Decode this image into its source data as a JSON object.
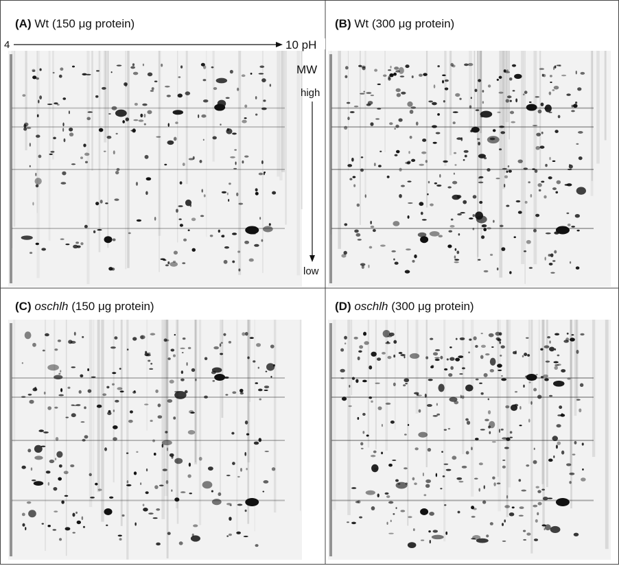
{
  "panels": [
    {
      "label": "(A)",
      "strain": "Wt",
      "amount": "(150 μg protein)"
    },
    {
      "label": "(B)",
      "strain": "Wt",
      "amount": "(300 μg protein)"
    },
    {
      "label": "(C)",
      "strain": "oschlh",
      "amount": "(150 μg protein)"
    },
    {
      "label": "(D)",
      "strain": "oschlh",
      "amount": "(300 μg protein)"
    }
  ],
  "axes": {
    "ph_low": "4",
    "ph_high": "10 pH",
    "mw": "MW",
    "mw_high": "high",
    "mw_low": "low"
  }
}
